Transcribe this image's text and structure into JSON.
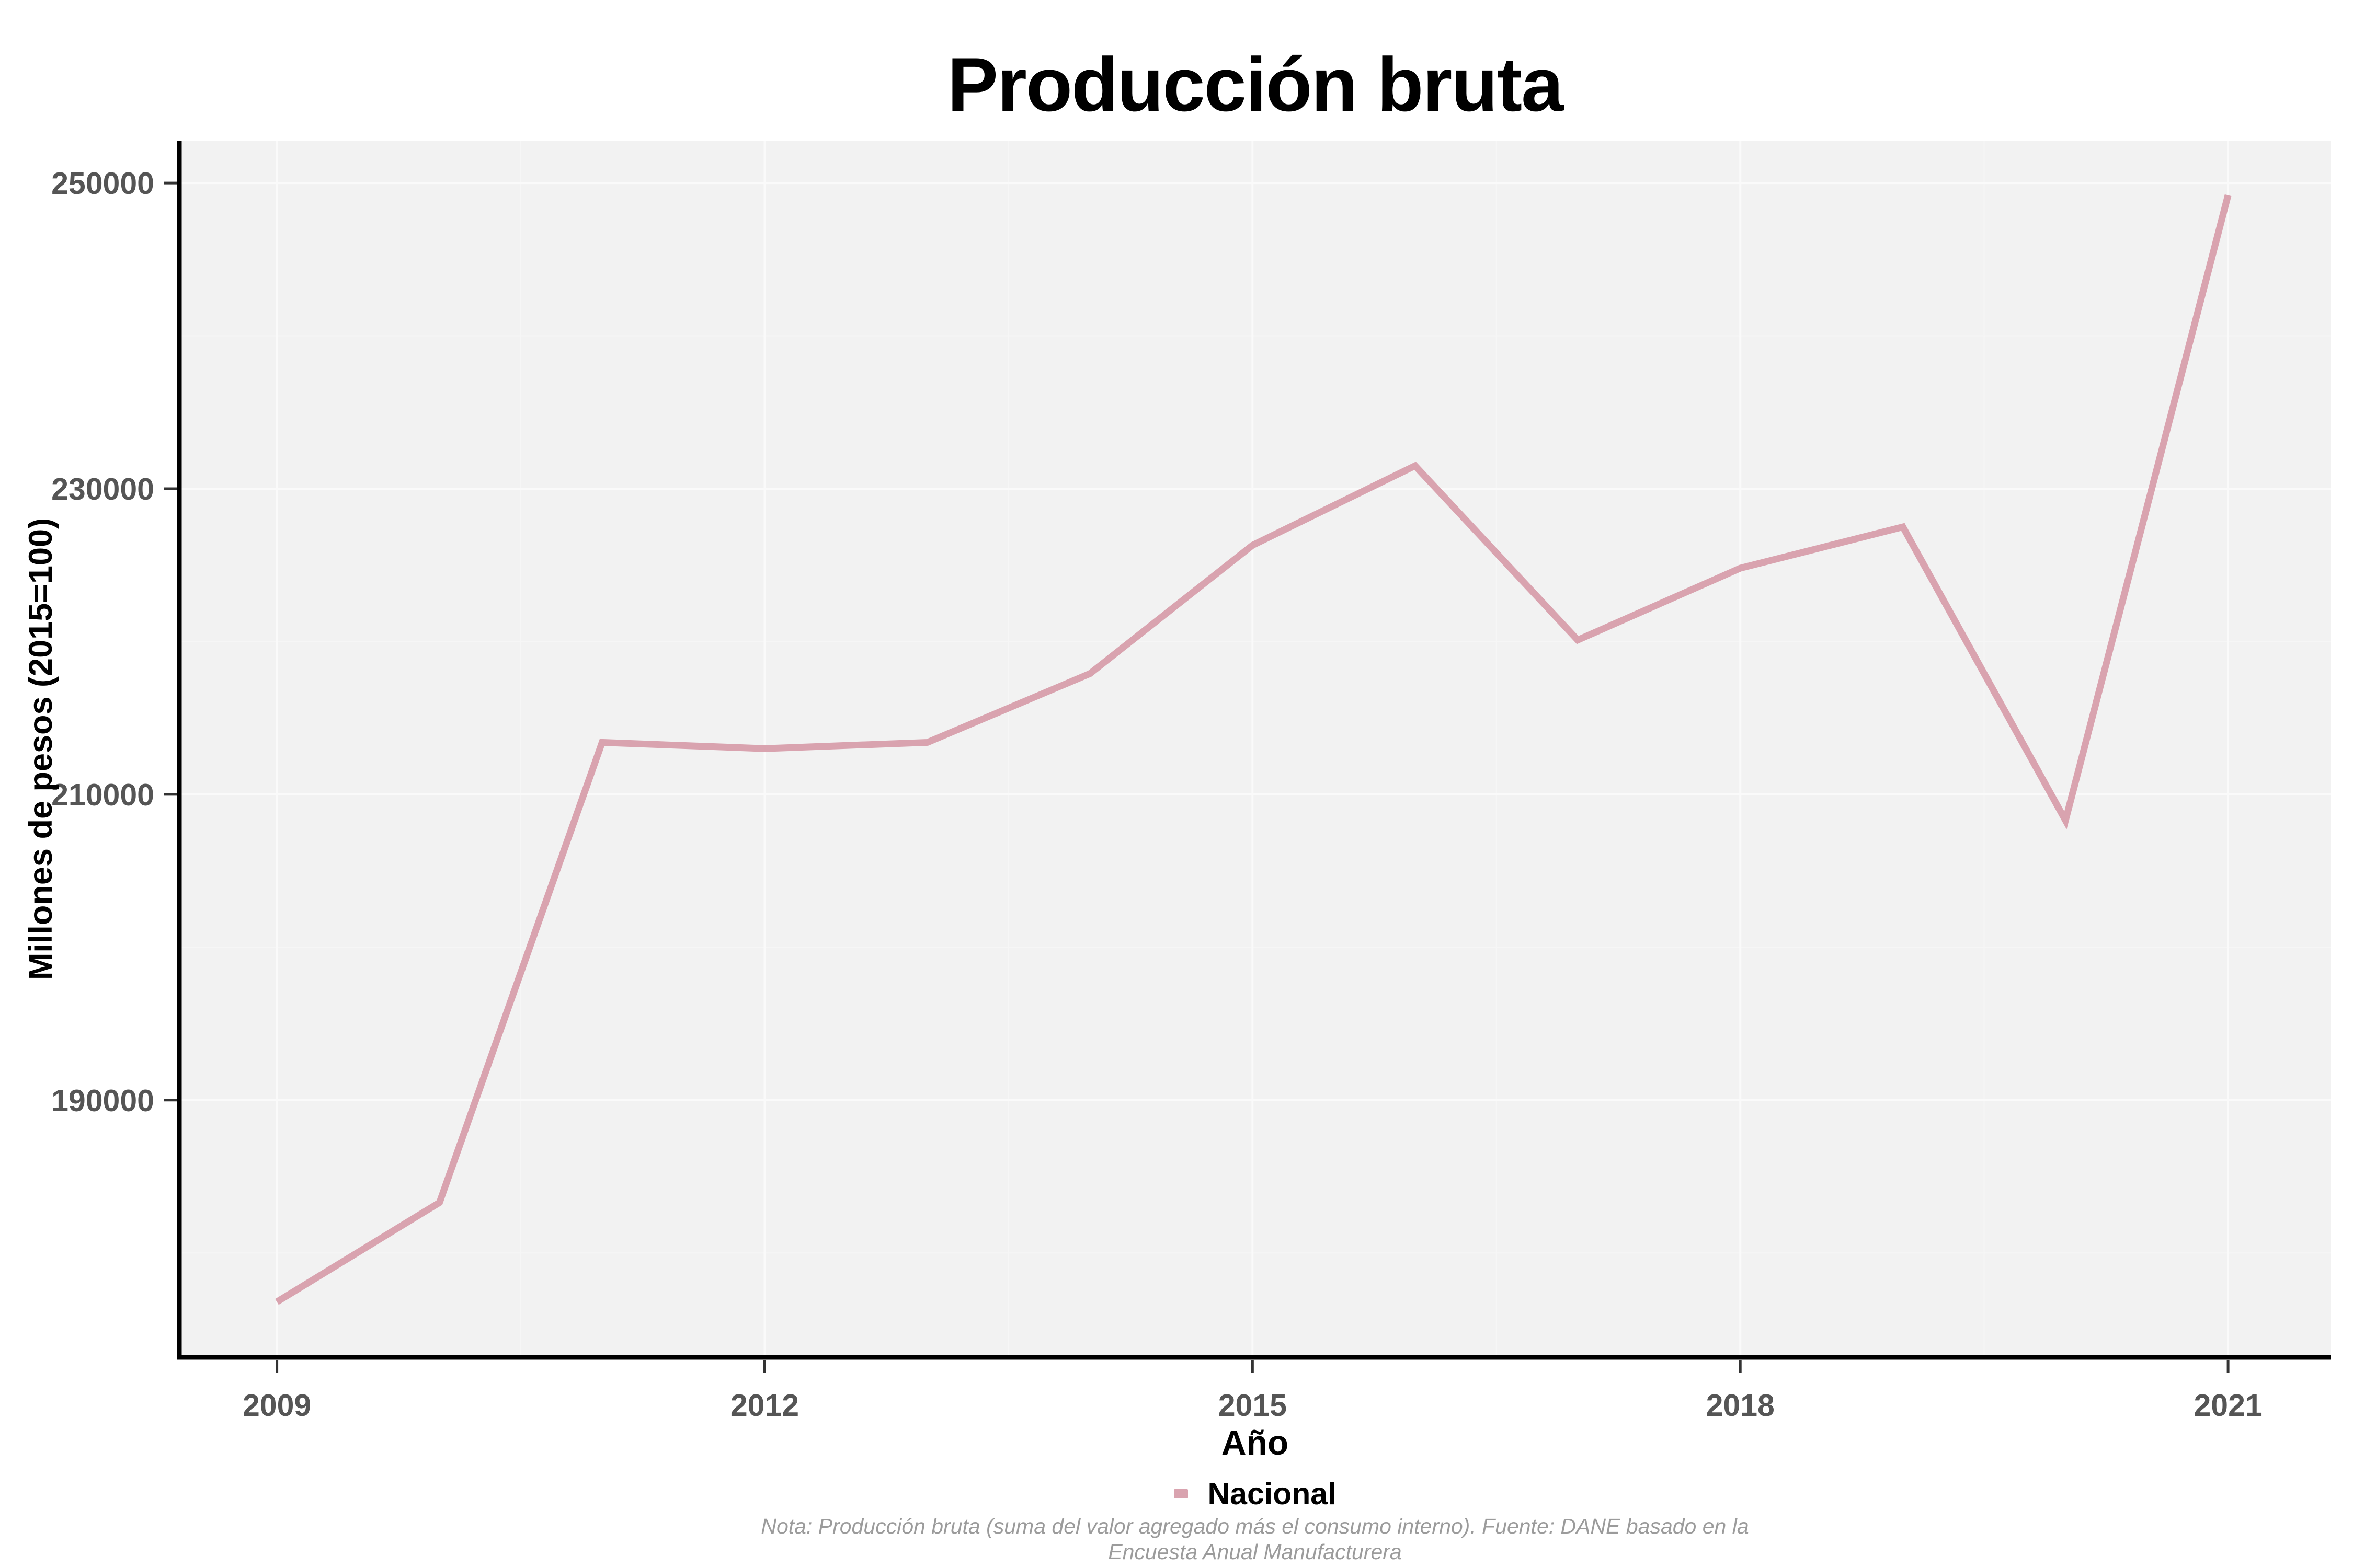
{
  "title": "Producción bruta",
  "axes": {
    "x_label": "Año",
    "y_label": "Millones de pesos (2015=100)"
  },
  "legend": {
    "label": "Nacional",
    "position": "bottom"
  },
  "caption": {
    "line1": "Nota: Producción bruta (suma del valor agregado más el consumo interno). Fuente: DANE basado en la",
    "line2": "Encuesta Anual Manufacturera"
  },
  "colors": {
    "line": "#D9A3AF",
    "panel_bg": "#F2F2F2",
    "grid_major": "#FAFAFA",
    "grid_minor": "#F6F6F6",
    "axis_line": "#000000",
    "tick_mark": "#333333",
    "axis_text": "#555555",
    "title_text": "#000000",
    "caption_text": "#9B9B9B"
  },
  "chart_data": {
    "type": "line",
    "x": [
      2009,
      2010,
      2011,
      2012,
      2013,
      2014,
      2015,
      2016,
      2017,
      2018,
      2019,
      2020,
      2021
    ],
    "series": [
      {
        "name": "Nacional",
        "values": [
          176800,
          183300,
          213400,
          213000,
          213400,
          217900,
          226300,
          231500,
          220100,
          224800,
          227500,
          208300,
          249200
        ]
      }
    ],
    "title": "Producción bruta",
    "xlabel": "Año",
    "ylabel": "Millones de pesos (2015=100)",
    "x_ticks": [
      2009,
      2012,
      2015,
      2018,
      2021
    ],
    "y_ticks": [
      190000,
      210000,
      230000,
      250000
    ],
    "xlim": [
      2008.4,
      2021.63
    ],
    "ylim": [
      173170,
      252740
    ],
    "grid": "major+minor",
    "legend_position": "bottom"
  }
}
